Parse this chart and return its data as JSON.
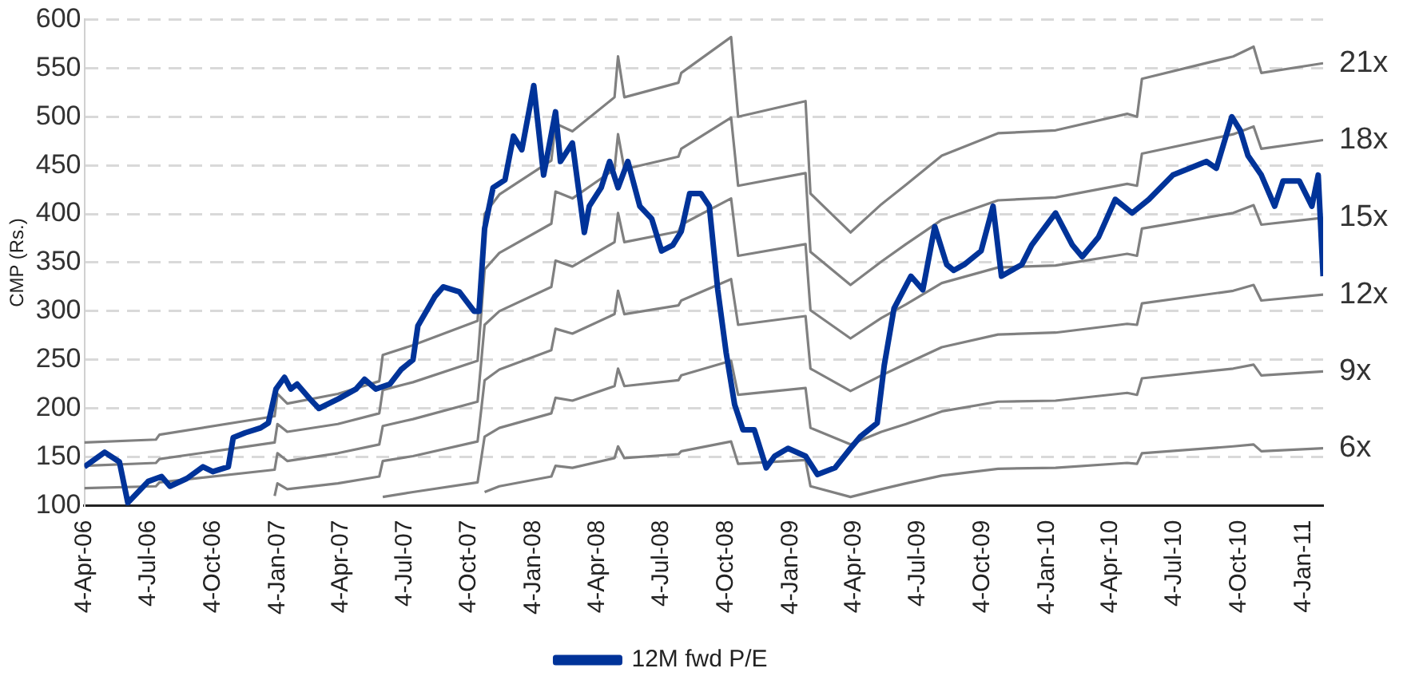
{
  "chart_data": {
    "type": "line",
    "ylabel": "CMP (Rs.)",
    "legend": "bottom",
    "grid": "y",
    "marker": "none",
    "line_style": "solid",
    "xlim": [
      "2006-04-04",
      "2011-02-01"
    ],
    "ylim": [
      100,
      600
    ],
    "yticks": [
      100,
      150,
      200,
      250,
      300,
      350,
      400,
      450,
      500,
      550,
      600
    ],
    "xticks": [
      {
        "value": "2006-04-04",
        "label": "4-Apr-06"
      },
      {
        "value": "2006-07-04",
        "label": "4-Jul-06"
      },
      {
        "value": "2006-10-04",
        "label": "4-Oct-06"
      },
      {
        "value": "2007-01-04",
        "label": "4-Jan-07"
      },
      {
        "value": "2007-04-04",
        "label": "4-Apr-07"
      },
      {
        "value": "2007-07-04",
        "label": "4-Jul-07"
      },
      {
        "value": "2007-10-04",
        "label": "4-Oct-07"
      },
      {
        "value": "2008-01-04",
        "label": "4-Jan-08"
      },
      {
        "value": "2008-04-04",
        "label": "4-Apr-08"
      },
      {
        "value": "2008-07-04",
        "label": "4-Jul-08"
      },
      {
        "value": "2008-10-04",
        "label": "4-Oct-08"
      },
      {
        "value": "2009-01-04",
        "label": "4-Jan-09"
      },
      {
        "value": "2009-04-04",
        "label": "4-Apr-09"
      },
      {
        "value": "2009-07-04",
        "label": "4-Jul-09"
      },
      {
        "value": "2009-10-04",
        "label": "4-Oct-09"
      },
      {
        "value": "2010-01-04",
        "label": "4-Jan-10"
      },
      {
        "value": "2010-04-04",
        "label": "4-Apr-10"
      },
      {
        "value": "2010-07-04",
        "label": "4-Jul-10"
      },
      {
        "value": "2010-10-04",
        "label": "4-Oct-10"
      },
      {
        "value": "2011-01-04",
        "label": "4-Jan-11"
      }
    ],
    "series": [
      {
        "name": "12M fwd P/E",
        "color": "#003399",
        "x": [
          "2006-04-04",
          "2006-05-03",
          "2006-05-24",
          "2006-06-05",
          "2006-07-04",
          "2006-07-23",
          "2006-08-04",
          "2006-08-28",
          "2006-09-20",
          "2006-10-04",
          "2006-10-26",
          "2006-11-02",
          "2006-11-19",
          "2006-12-11",
          "2006-12-22",
          "2007-01-02",
          "2007-01-14",
          "2007-01-23",
          "2007-02-01",
          "2007-02-19",
          "2007-03-04",
          "2007-04-01",
          "2007-04-26",
          "2007-05-08",
          "2007-05-24",
          "2007-06-13",
          "2007-06-29",
          "2007-07-16",
          "2007-07-23",
          "2007-08-04",
          "2007-08-16",
          "2007-08-28",
          "2007-09-20",
          "2007-10-11",
          "2007-10-18",
          "2007-10-26",
          "2007-11-07",
          "2007-11-24",
          "2007-12-06",
          "2007-12-18",
          "2008-01-04",
          "2008-01-18",
          "2008-02-04",
          "2008-02-11",
          "2008-02-28",
          "2008-03-16",
          "2008-03-23",
          "2008-04-09",
          "2008-04-21",
          "2008-05-03",
          "2008-05-17",
          "2008-06-03",
          "2008-06-20",
          "2008-07-04",
          "2008-07-20",
          "2008-08-01",
          "2008-08-13",
          "2008-08-29",
          "2008-09-10",
          "2008-09-22",
          "2008-10-04",
          "2008-10-16",
          "2008-10-28",
          "2008-11-13",
          "2008-11-30",
          "2008-12-12",
          "2008-12-31",
          "2009-01-25",
          "2009-02-11",
          "2009-03-08",
          "2009-03-30",
          "2009-04-13",
          "2009-05-07",
          "2009-05-17",
          "2009-05-31",
          "2009-06-24",
          "2009-07-11",
          "2009-07-28",
          "2009-08-14",
          "2009-08-24",
          "2009-09-08",
          "2009-10-02",
          "2009-10-19",
          "2009-10-31",
          "2009-11-29",
          "2009-12-13",
          "2010-01-16",
          "2010-02-09",
          "2010-02-23",
          "2010-03-18",
          "2010-04-11",
          "2010-05-05",
          "2010-05-29",
          "2010-07-02",
          "2010-07-26",
          "2010-08-19",
          "2010-09-02",
          "2010-09-24",
          "2010-10-06",
          "2010-10-17",
          "2010-11-05",
          "2010-11-24",
          "2010-12-06",
          "2010-12-29",
          "2011-01-16",
          "2011-01-25",
          "2011-02-01"
        ],
        "values": [
          140,
          155,
          145,
          103,
          125,
          130,
          120,
          128,
          140,
          135,
          140,
          170,
          175,
          180,
          185,
          220,
          232,
          220,
          225,
          210,
          200,
          210,
          220,
          230,
          220,
          225,
          240,
          250,
          285,
          300,
          315,
          325,
          320,
          300,
          300,
          385,
          427,
          435,
          480,
          466,
          532,
          440,
          505,
          454,
          473,
          381,
          408,
          427,
          454,
          427,
          454,
          408,
          395,
          362,
          368,
          382,
          421,
          421,
          408,
          322,
          257,
          204,
          178,
          178,
          139,
          151,
          159,
          151,
          132,
          139,
          159,
          171,
          185,
          244,
          303,
          336,
          322,
          387,
          348,
          342,
          348,
          362,
          408,
          336,
          348,
          368,
          401,
          368,
          356,
          376,
          415,
          401,
          415,
          440,
          447,
          454,
          447,
          500,
          486,
          460,
          440,
          408,
          434,
          434,
          408,
          440,
          336
        ]
      },
      {
        "name": "21x",
        "color": "#808080",
        "values": [
          165,
          168,
          173,
          192,
          215,
          205,
          215,
          228,
          255,
          265,
          290,
          400,
          420,
          455,
          493,
          485,
          520,
          562,
          520,
          535,
          545,
          582,
          500,
          516,
          421,
          381,
          410,
          430,
          460,
          483,
          486,
          503,
          500,
          539,
          562,
          572,
          545,
          555
        ]
      },
      {
        "name": "18x",
        "color": "#808080",
        "values": [
          141,
          144,
          148,
          165,
          184,
          176,
          184,
          195,
          219,
          227,
          249,
          343,
          360,
          390,
          423,
          416,
          446,
          482,
          446,
          459,
          467,
          499,
          429,
          442,
          361,
          327,
          351,
          369,
          394,
          414,
          417,
          431,
          429,
          462,
          482,
          490,
          467,
          476
        ]
      },
      {
        "name": "15x",
        "color": "#808080",
        "values": [
          118,
          120,
          124,
          137,
          154,
          146,
          154,
          163,
          182,
          189,
          207,
          286,
          300,
          325,
          352,
          346,
          371,
          401,
          371,
          382,
          389,
          416,
          357,
          369,
          301,
          272,
          293,
          307,
          329,
          345,
          347,
          359,
          357,
          385,
          401,
          409,
          389,
          396
        ]
      },
      {
        "name": "12x",
        "color": "#808080",
        "values": [
          null,
          null,
          null,
          110,
          123,
          117,
          123,
          130,
          146,
          151,
          166,
          229,
          240,
          260,
          282,
          277,
          297,
          321,
          297,
          306,
          311,
          333,
          286,
          295,
          241,
          218,
          234,
          246,
          263,
          276,
          278,
          287,
          286,
          308,
          321,
          327,
          311,
          317
        ]
      },
      {
        "name": "9x",
        "color": "#808080",
        "values": [
          null,
          null,
          null,
          null,
          null,
          null,
          null,
          null,
          109,
          114,
          124,
          171,
          180,
          195,
          211,
          208,
          223,
          241,
          223,
          229,
          234,
          249,
          214,
          221,
          180,
          163,
          176,
          184,
          197,
          207,
          208,
          216,
          214,
          231,
          241,
          245,
          234,
          238
        ]
      },
      {
        "name": "6x",
        "color": "#808080",
        "values": [
          null,
          null,
          null,
          null,
          null,
          null,
          null,
          null,
          null,
          null,
          null,
          114,
          120,
          130,
          141,
          139,
          149,
          161,
          149,
          153,
          156,
          166,
          143,
          147,
          120,
          109,
          117,
          123,
          131,
          138,
          139,
          144,
          143,
          154,
          161,
          163,
          156,
          159
        ]
      }
    ],
    "x": [
      "2006-04-04",
      "2006-07-15",
      "2006-07-20",
      "2006-12-31",
      "2007-01-04",
      "2007-01-18",
      "2007-03-31",
      "2007-05-29",
      "2007-06-03",
      "2007-07-16",
      "2007-10-16",
      "2007-10-26",
      "2007-11-16",
      "2008-01-29",
      "2008-02-04",
      "2008-02-28",
      "2008-04-28",
      "2008-05-03",
      "2008-05-12",
      "2008-07-28",
      "2008-08-01",
      "2008-10-11",
      "2008-10-21",
      "2009-01-25",
      "2009-02-01",
      "2009-03-30",
      "2009-05-13",
      "2009-06-17",
      "2009-08-07",
      "2009-10-26",
      "2010-01-16",
      "2010-04-28",
      "2010-05-12",
      "2010-05-19",
      "2010-09-26",
      "2010-10-25",
      "2010-11-05",
      "2011-02-01"
    ]
  }
}
